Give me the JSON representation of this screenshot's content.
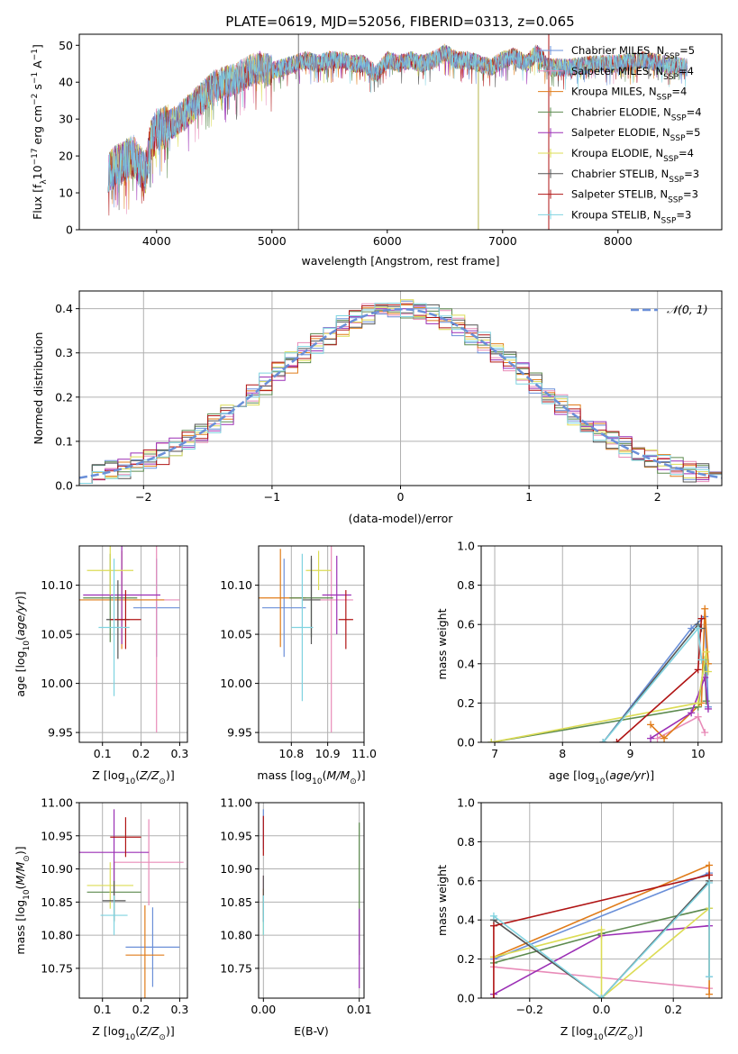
{
  "figure_title": "PLATE=0619, MJD=52056, FIBERID=0313, z=0.065",
  "styles": {
    "colors": [
      "#6a8fd8",
      "#e88bb8",
      "#e07c1a",
      "#5c8a4e",
      "#9b2fb5",
      "#dcdc55",
      "#555555",
      "#b01414",
      "#7fd3e0"
    ],
    "gaussian_color": "#6a8fd8",
    "grid_color": "#b0b0b0"
  },
  "chart_data": [
    {
      "type": "line",
      "id": "spectrum",
      "title": "PLATE=0619, MJD=52056, FIBERID=0313, z=0.065",
      "xlabel": "wavelength [Angstrom, rest frame]",
      "ylabel": "Flux [fλ10⁻¹⁷ erg cm⁻² s⁻¹ A⁻¹]",
      "xlim": [
        3330,
        8900
      ],
      "ylim": [
        0,
        53
      ],
      "xticks": [
        4000,
        5000,
        6000,
        7000,
        8000
      ],
      "yticks": [
        0,
        10,
        20,
        30,
        40,
        50
      ],
      "grid": false,
      "legend_position": "right",
      "legend": [
        {
          "name": "Chabrier MILES",
          "nssp": "5"
        },
        {
          "name": "Salpeter MILES",
          "nssp": "4"
        },
        {
          "name": "Kroupa MILES",
          "nssp": "4"
        },
        {
          "name": "Chabrier ELODIE",
          "nssp": "4"
        },
        {
          "name": "Salpeter ELODIE",
          "nssp": "5"
        },
        {
          "name": "Kroupa ELODIE",
          "nssp": "4"
        },
        {
          "name": "Chabrier STELIB",
          "nssp": "3"
        },
        {
          "name": "Salpeter STELIB",
          "nssp": "3"
        },
        {
          "name": "Kroupa STELIB",
          "nssp": "3"
        }
      ],
      "wavelength_range": [
        3580,
        8600
      ],
      "continuum": [
        [
          3580,
          16
        ],
        [
          3700,
          18
        ],
        [
          3800,
          20
        ],
        [
          3900,
          15
        ],
        [
          3950,
          24
        ],
        [
          4000,
          27
        ],
        [
          4100,
          28
        ],
        [
          4200,
          30
        ],
        [
          4300,
          33
        ],
        [
          4400,
          36
        ],
        [
          4500,
          39
        ],
        [
          4600,
          40
        ],
        [
          4700,
          41
        ],
        [
          4800,
          43
        ],
        [
          4900,
          44
        ],
        [
          5000,
          43
        ],
        [
          5100,
          44
        ],
        [
          5200,
          45
        ],
        [
          5300,
          46
        ],
        [
          5400,
          45
        ],
        [
          5500,
          46
        ],
        [
          5600,
          46
        ],
        [
          5700,
          45
        ],
        [
          5800,
          45
        ],
        [
          5900,
          42
        ],
        [
          6000,
          46
        ],
        [
          6100,
          45
        ],
        [
          6200,
          46
        ],
        [
          6300,
          45
        ],
        [
          6400,
          46
        ],
        [
          6500,
          48
        ],
        [
          6600,
          46
        ],
        [
          6700,
          46
        ],
        [
          6800,
          45
        ],
        [
          6900,
          44
        ],
        [
          7000,
          46
        ],
        [
          7100,
          47
        ],
        [
          7200,
          45
        ],
        [
          7300,
          48
        ],
        [
          7400,
          44
        ],
        [
          7600,
          44
        ],
        [
          7800,
          45
        ],
        [
          8000,
          45
        ],
        [
          8200,
          46
        ],
        [
          8400,
          45
        ],
        [
          8600,
          44
        ]
      ],
      "spikes": [
        [
          5230,
          0,
          53
        ],
        [
          6790,
          0,
          45
        ],
        [
          7400,
          0,
          53
        ]
      ]
    },
    {
      "type": "bar",
      "id": "residuals",
      "xlabel": "(data-model)/error",
      "ylabel": "Normed distribution",
      "xlim": [
        -2.5,
        2.5
      ],
      "ylim": [
        0,
        0.44
      ],
      "xticks": [
        -2,
        -1,
        0,
        1,
        2
      ],
      "yticks": [
        0.0,
        0.1,
        0.2,
        0.3,
        0.4
      ],
      "grid": true,
      "legend_position": "top-right",
      "legend": [
        {
          "name": "𝒩(0, 1)"
        }
      ],
      "bin_edges_start": -2.5,
      "bin_width": 0.1,
      "bin_count": 50
    },
    {
      "type": "scatter",
      "id": "age_vs_Z",
      "xlabel": "Z [log₁₀(Z/Z⊙)]",
      "ylabel": "age  [log₁₀(age/yr)]",
      "xlim": [
        0.04,
        0.32
      ],
      "ylim": [
        9.94,
        10.14
      ],
      "xticks": [
        0.1,
        0.2,
        0.3
      ],
      "yticks": [
        9.95,
        10.0,
        10.05,
        10.1
      ],
      "grid": true,
      "points": [
        {
          "x": 0.24,
          "y": 10.077,
          "xerr": 0.06,
          "yerr": 0.05
        },
        {
          "x": 0.24,
          "y": 10.085,
          "xerr": 0.06,
          "yerr": 0.135
        },
        {
          "x": 0.15,
          "y": 10.085,
          "xerr": 0.11,
          "yerr": 0.05
        },
        {
          "x": 0.12,
          "y": 10.087,
          "xerr": 0.07,
          "yerr": 0.045
        },
        {
          "x": 0.15,
          "y": 10.09,
          "xerr": 0.1,
          "yerr": 0.05
        },
        {
          "x": 0.12,
          "y": 10.115,
          "xerr": 0.06,
          "yerr": 0.025
        },
        {
          "x": 0.14,
          "y": 10.065,
          "xerr": 0.03,
          "yerr": 0.04
        },
        {
          "x": 0.16,
          "y": 10.065,
          "xerr": 0.04,
          "yerr": 0.03
        },
        {
          "x": 0.13,
          "y": 10.057,
          "xerr": 0.04,
          "yerr": 0.07
        }
      ]
    },
    {
      "type": "scatter",
      "id": "age_vs_mass",
      "xlabel": "mass [log₁₀(M/M⊙)]",
      "ylabel": "",
      "xlim": [
        10.71,
        11.0
      ],
      "ylim": [
        9.94,
        10.14
      ],
      "xticks": [
        10.8,
        10.9,
        11.0
      ],
      "yticks": [
        9.95,
        10.0,
        10.05,
        10.1
      ],
      "grid": true,
      "points": [
        {
          "x": 10.78,
          "y": 10.077,
          "xerr": 0.06,
          "yerr": 0.05
        },
        {
          "x": 10.91,
          "y": 10.085,
          "xerr": 0.06,
          "yerr": 0.135
        },
        {
          "x": 10.77,
          "y": 10.087,
          "xerr": 0.07,
          "yerr": 0.05
        },
        {
          "x": 10.855,
          "y": 10.087,
          "xerr": 0.06,
          "yerr": 0.04
        },
        {
          "x": 10.925,
          "y": 10.09,
          "xerr": 0.04,
          "yerr": 0.04
        },
        {
          "x": 10.875,
          "y": 10.115,
          "xerr": 0.035,
          "yerr": 0.02
        },
        {
          "x": 10.855,
          "y": 10.085,
          "xerr": 0.025,
          "yerr": 0.045
        },
        {
          "x": 10.95,
          "y": 10.065,
          "xerr": 0.02,
          "yerr": 0.03
        },
        {
          "x": 10.83,
          "y": 10.057,
          "xerr": 0.03,
          "yerr": 0.075
        }
      ]
    },
    {
      "type": "line",
      "id": "massweight_vs_age",
      "xlabel": "age  [log₁₀(age/yr)]",
      "ylabel": "mass weight",
      "xlim": [
        6.8,
        10.35
      ],
      "ylim": [
        0,
        1.0
      ],
      "xticks": [
        7,
        8,
        9,
        10
      ],
      "yticks": [
        0.0,
        0.2,
        0.4,
        0.6,
        0.8,
        1.0
      ],
      "grid": true,
      "series": [
        {
          "values": [
            [
              8.6,
              0.0
            ],
            [
              9.9,
              0.58
            ],
            [
              10.1,
              0.64
            ],
            [
              10.15,
              0.18
            ]
          ]
        },
        {
          "values": [
            [
              9.4,
              0.02
            ],
            [
              10.0,
              0.13
            ],
            [
              10.1,
              0.05
            ]
          ]
        },
        {
          "values": [
            [
              9.3,
              0.09
            ],
            [
              9.5,
              0.02
            ],
            [
              10.05,
              0.2
            ],
            [
              10.1,
              0.68
            ],
            [
              10.15,
              0.4
            ]
          ]
        },
        {
          "values": [
            [
              6.95,
              0.0
            ],
            [
              10.0,
              0.18
            ],
            [
              10.1,
              0.42
            ],
            [
              10.12,
              0.21
            ]
          ]
        },
        {
          "values": [
            [
              9.3,
              0.02
            ],
            [
              9.9,
              0.15
            ],
            [
              10.1,
              0.33
            ],
            [
              10.15,
              0.17
            ]
          ]
        },
        {
          "values": [
            [
              6.95,
              0.0
            ],
            [
              10.0,
              0.2
            ],
            [
              10.12,
              0.46
            ],
            [
              10.15,
              0.36
            ]
          ]
        },
        {
          "values": [
            [
              8.6,
              0.0
            ],
            [
              10.0,
              0.6
            ],
            [
              10.05,
              0.58
            ]
          ]
        },
        {
          "values": [
            [
              8.8,
              0.0
            ],
            [
              10.0,
              0.37
            ],
            [
              10.05,
              0.63
            ]
          ]
        },
        {
          "values": [
            [
              8.6,
              0.0
            ],
            [
              10.0,
              0.58
            ],
            [
              10.05,
              0.42
            ]
          ]
        }
      ]
    },
    {
      "type": "scatter",
      "id": "mass_vs_Z",
      "xlabel": "Z [log₁₀(Z/Z⊙)]",
      "ylabel": "mass [log₁₀(M/M⊙)]",
      "xlim": [
        0.04,
        0.32
      ],
      "ylim": [
        10.705,
        11.0
      ],
      "xticks": [
        0.1,
        0.2,
        0.3
      ],
      "yticks": [
        10.75,
        10.8,
        10.85,
        10.9,
        10.95,
        11.0
      ],
      "grid": true,
      "points": [
        {
          "x": 0.23,
          "y": 10.782,
          "xerr": 0.07,
          "yerr": 0.06
        },
        {
          "x": 0.22,
          "y": 10.91,
          "xerr": 0.09,
          "yerr": 0.065
        },
        {
          "x": 0.21,
          "y": 10.77,
          "xerr": 0.05,
          "yerr": 0.075
        },
        {
          "x": 0.13,
          "y": 10.865,
          "xerr": 0.07,
          "yerr": 0.045
        },
        {
          "x": 0.13,
          "y": 10.925,
          "xerr": 0.09,
          "yerr": 0.065
        },
        {
          "x": 0.12,
          "y": 10.875,
          "xerr": 0.06,
          "yerr": 0.035
        },
        {
          "x": 0.13,
          "y": 10.852,
          "xerr": 0.03,
          "yerr": 0.03
        },
        {
          "x": 0.16,
          "y": 10.948,
          "xerr": 0.04,
          "yerr": 0.03
        },
        {
          "x": 0.13,
          "y": 10.83,
          "xerr": 0.035,
          "yerr": 0.03
        }
      ]
    },
    {
      "type": "scatter",
      "id": "mass_vs_EBV",
      "xlabel": "E(B-V)",
      "ylabel": "",
      "xlim": [
        -0.0005,
        0.0105
      ],
      "ylim": [
        10.705,
        11.0
      ],
      "xticks": [
        0.0,
        0.01
      ],
      "yticks": [
        10.75,
        10.8,
        10.85,
        10.9,
        10.95,
        11.0
      ],
      "grid": true,
      "points": [
        {
          "x": 0.0,
          "y": 10.96,
          "xerr": 0,
          "yerr": 0.03
        },
        {
          "x": 0.0,
          "y": 10.86,
          "xerr": 0,
          "yerr": 0.03
        },
        {
          "x": 0.0,
          "y": 10.85,
          "xerr": 0,
          "yerr": 0.02
        },
        {
          "x": 0.01,
          "y": 10.87,
          "xerr": 0,
          "yerr": 0.1
        },
        {
          "x": 0.01,
          "y": 10.78,
          "xerr": 0,
          "yerr": 0.06
        },
        {
          "x": 0.0,
          "y": 10.83,
          "xerr": 0,
          "yerr": 0.03
        },
        {
          "x": 0.0,
          "y": 10.855,
          "xerr": 0,
          "yerr": 0.035
        },
        {
          "x": 0.0,
          "y": 10.95,
          "xerr": 0,
          "yerr": 0.03
        },
        {
          "x": 0.0,
          "y": 10.83,
          "xerr": 0,
          "yerr": 0.03
        }
      ]
    },
    {
      "type": "line",
      "id": "massweight_vs_Z",
      "xlabel": "Z [log₁₀(Z/Z⊙)]",
      "ylabel": "mass weight",
      "xlim": [
        -0.335,
        0.335
      ],
      "ylim": [
        0,
        1.0
      ],
      "xticks": [
        -0.2,
        0.0,
        0.2
      ],
      "yticks": [
        0.0,
        0.2,
        0.4,
        0.6,
        0.8,
        1.0
      ],
      "grid": true,
      "series": [
        {
          "values": [
            [
              -0.3,
              0.2
            ],
            [
              0.3,
              0.64
            ],
            [
              0.3,
              0.11
            ]
          ]
        },
        {
          "values": [
            [
              -0.3,
              0.16
            ],
            [
              0.3,
              0.05
            ]
          ]
        },
        {
          "values": [
            [
              -0.3,
              0.21
            ],
            [
              0.3,
              0.68
            ],
            [
              0.3,
              0.02
            ]
          ]
        },
        {
          "values": [
            [
              -0.3,
              0.18
            ],
            [
              0.0,
              0.33
            ],
            [
              0.3,
              0.46
            ]
          ]
        },
        {
          "values": [
            [
              -0.3,
              0.02
            ],
            [
              0.0,
              0.32
            ],
            [
              0.3,
              0.37
            ]
          ]
        },
        {
          "values": [
            [
              -0.3,
              0.21
            ],
            [
              0.0,
              0.35
            ],
            [
              0.0,
              0.0
            ],
            [
              0.3,
              0.46
            ]
          ]
        },
        {
          "values": [
            [
              -0.3,
              0.4
            ],
            [
              0.0,
              0.0
            ],
            [
              0.3,
              0.6
            ]
          ]
        },
        {
          "values": [
            [
              -0.3,
              0.0
            ],
            [
              -0.3,
              0.37
            ],
            [
              0.3,
              0.63
            ]
          ]
        },
        {
          "values": [
            [
              -0.3,
              0.42
            ],
            [
              0.0,
              0.0
            ],
            [
              0.3,
              0.59
            ],
            [
              0.3,
              0.11
            ]
          ]
        }
      ]
    }
  ]
}
